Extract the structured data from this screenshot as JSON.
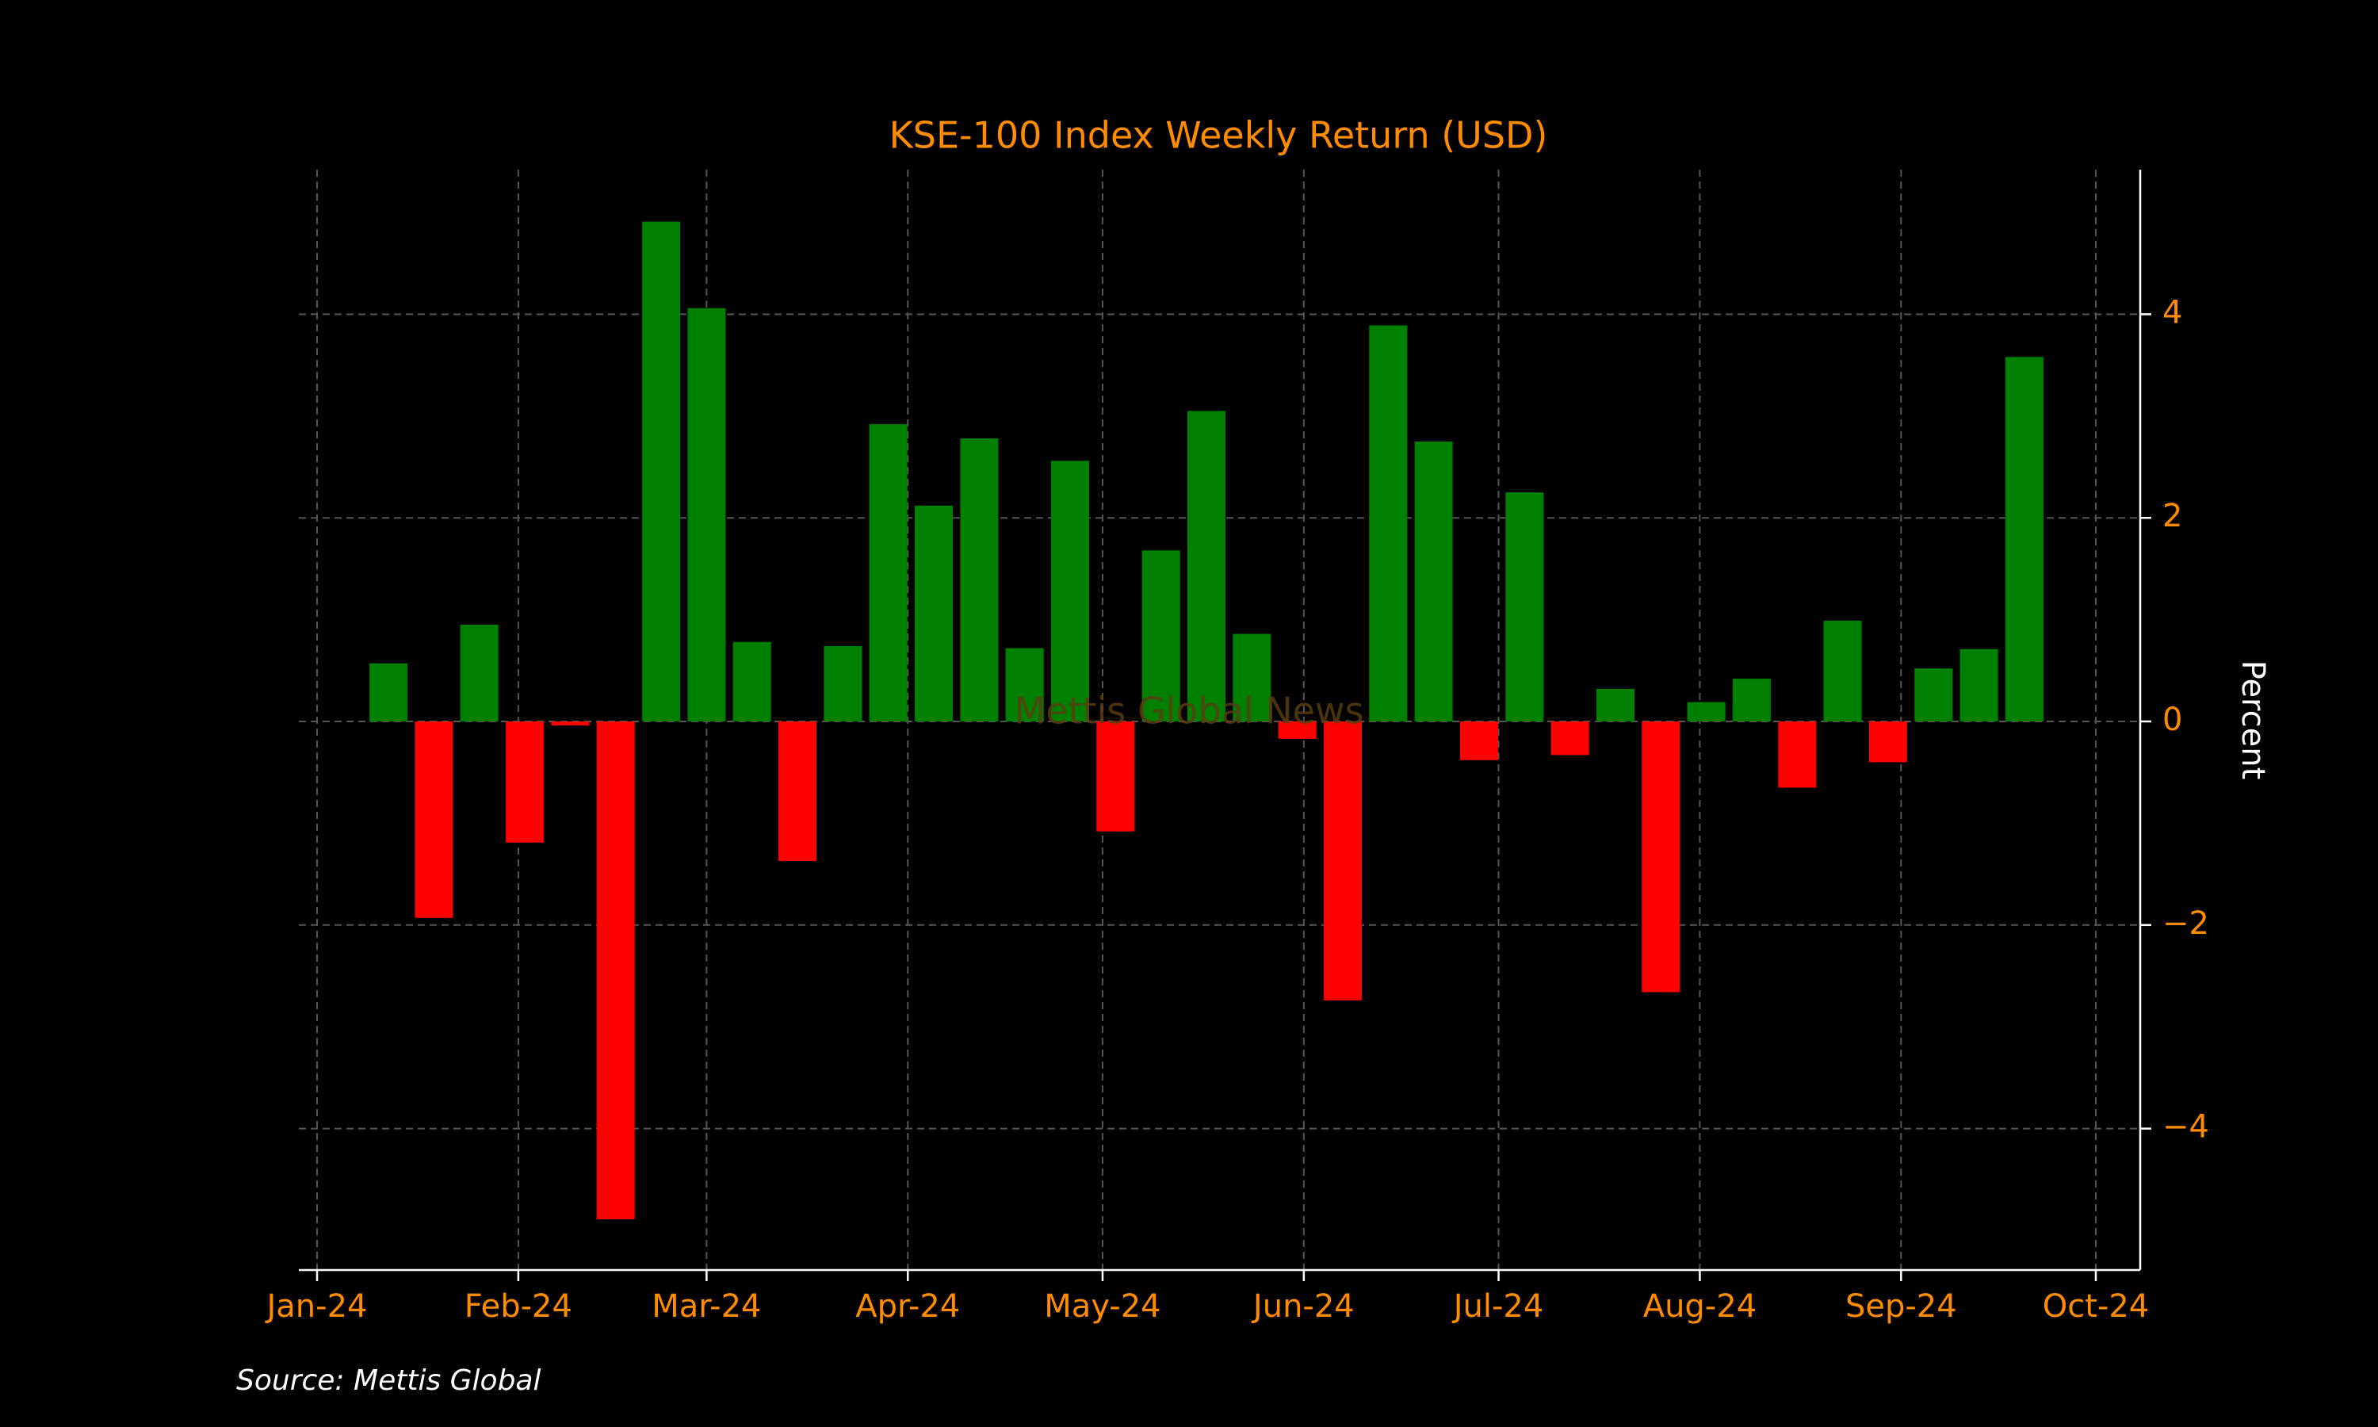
{
  "chart_data": {
    "type": "bar",
    "title": "KSE-100 Index Weekly Return (USD)",
    "xlabel": "",
    "ylabel": "Percent",
    "watermark": "Mettis Global News",
    "source": "Source: Mettis Global",
    "x_ticks": [
      "Jan-24",
      "Feb-24",
      "Mar-24",
      "Apr-24",
      "May-24",
      "Jun-24",
      "Jul-24",
      "Aug-24",
      "Sep-24",
      "Oct-24"
    ],
    "x_tick_dates": [
      "2024-01-01",
      "2024-02-01",
      "2024-03-01",
      "2024-04-01",
      "2024-05-01",
      "2024-06-01",
      "2024-07-01",
      "2024-08-01",
      "2024-09-01",
      "2024-10-01"
    ],
    "y_ticks": [
      -4,
      -2,
      0,
      2,
      4
    ],
    "y_tick_labels": [
      "−4",
      "−2",
      "0",
      "2",
      "4"
    ],
    "xlim": [
      "2024-01-01",
      "2024-10-01"
    ],
    "ylim": [
      -5.4,
      5.4
    ],
    "y_axis_position": "right",
    "grid": true,
    "colors": {
      "positive": "#008000",
      "negative": "#ff0000",
      "background": "#000000",
      "text_accent": "#ff8c00",
      "axis": "#ffffff",
      "grid": "#555555"
    },
    "points": [
      {
        "date": "2024-01-12",
        "value": 0.57
      },
      {
        "date": "2024-01-19",
        "value": -1.93
      },
      {
        "date": "2024-01-26",
        "value": 0.95
      },
      {
        "date": "2024-02-02",
        "value": -1.19
      },
      {
        "date": "2024-02-09",
        "value": -0.04
      },
      {
        "date": "2024-02-16",
        "value": -4.89
      },
      {
        "date": "2024-02-23",
        "value": 4.91
      },
      {
        "date": "2024-03-01",
        "value": 4.06
      },
      {
        "date": "2024-03-08",
        "value": 0.78
      },
      {
        "date": "2024-03-15",
        "value": -1.37
      },
      {
        "date": "2024-03-22",
        "value": 0.74
      },
      {
        "date": "2024-03-29",
        "value": 2.92
      },
      {
        "date": "2024-04-05",
        "value": 2.12
      },
      {
        "date": "2024-04-12",
        "value": 2.78
      },
      {
        "date": "2024-04-19",
        "value": 0.72
      },
      {
        "date": "2024-04-26",
        "value": 2.56
      },
      {
        "date": "2024-05-03",
        "value": -1.08
      },
      {
        "date": "2024-05-10",
        "value": 1.68
      },
      {
        "date": "2024-05-17",
        "value": 3.05
      },
      {
        "date": "2024-05-24",
        "value": 0.86
      },
      {
        "date": "2024-05-31",
        "value": -0.17
      },
      {
        "date": "2024-06-07",
        "value": -2.74
      },
      {
        "date": "2024-06-14",
        "value": 3.89
      },
      {
        "date": "2024-06-21",
        "value": 2.75
      },
      {
        "date": "2024-06-28",
        "value": -0.38
      },
      {
        "date": "2024-07-05",
        "value": 2.25
      },
      {
        "date": "2024-07-12",
        "value": -0.33
      },
      {
        "date": "2024-07-19",
        "value": 0.32
      },
      {
        "date": "2024-07-26",
        "value": -2.66
      },
      {
        "date": "2024-08-02",
        "value": 0.19
      },
      {
        "date": "2024-08-09",
        "value": 0.42
      },
      {
        "date": "2024-08-16",
        "value": -0.65
      },
      {
        "date": "2024-08-23",
        "value": 0.99
      },
      {
        "date": "2024-08-30",
        "value": -0.4
      },
      {
        "date": "2024-09-06",
        "value": 0.52
      },
      {
        "date": "2024-09-13",
        "value": 0.71
      },
      {
        "date": "2024-09-20",
        "value": 3.58
      }
    ]
  }
}
